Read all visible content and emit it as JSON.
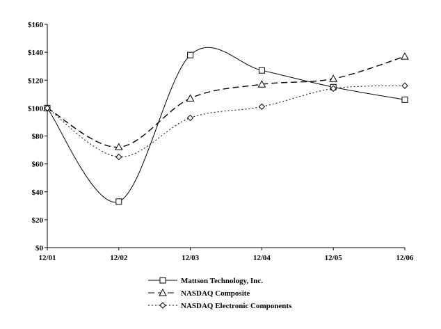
{
  "chart_data": {
    "type": "line",
    "title": "",
    "xlabel": "",
    "ylabel": "",
    "categories": [
      "12/01",
      "12/02",
      "12/03",
      "12/04",
      "12/05",
      "12/06"
    ],
    "ylim": [
      0,
      160
    ],
    "yticks": [
      0,
      20,
      40,
      60,
      80,
      100,
      120,
      140,
      160
    ],
    "ytick_labels": [
      "$0",
      "$20",
      "$40",
      "$60",
      "$80",
      "$100",
      "$120",
      "$140",
      "$160"
    ],
    "grid": false,
    "legend_position": "bottom",
    "series": [
      {
        "name": "Mattson Technology, Inc.",
        "marker": "square",
        "dash": "solid",
        "values": [
          100,
          33,
          138,
          127,
          115,
          106
        ]
      },
      {
        "name": "NASDAQ Composite",
        "marker": "triangle",
        "dash": "dashed",
        "values": [
          100,
          72,
          107,
          117,
          121,
          137
        ]
      },
      {
        "name": "NASDAQ Electronic Components",
        "marker": "diamond",
        "dash": "dotted",
        "values": [
          100,
          65,
          93,
          101,
          114,
          116
        ]
      }
    ]
  }
}
